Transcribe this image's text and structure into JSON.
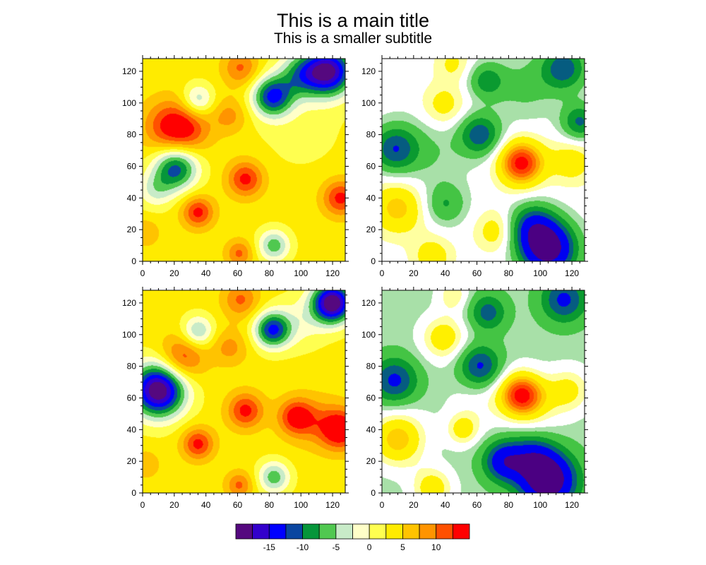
{
  "title": "This is a main title",
  "subtitle": "This is a smaller subtitle",
  "chart_data": {
    "type": "heatmap",
    "subtype": "filled-contour",
    "colorbar": {
      "levels": [
        -17.5,
        -15,
        -12.5,
        -10,
        -7.5,
        -5,
        -2.5,
        0,
        2.5,
        5,
        7.5,
        10,
        12.5
      ],
      "colors": [
        "#55087f",
        "#3300cc",
        "#0000ff",
        "#0a46a0",
        "#06963a",
        "#50c850",
        "#c8ebc8",
        "#ffffc8",
        "#ffff50",
        "#ffeb00",
        "#ffc300",
        "#ff9400",
        "#ff5000",
        "#ff0000"
      ],
      "tick_labels": [
        {
          "value": -15,
          "label": "-15"
        },
        {
          "value": -10,
          "label": "-10"
        },
        {
          "value": -5,
          "label": "-5"
        },
        {
          "value": 0,
          "label": "0"
        },
        {
          "value": 5,
          "label": "5"
        },
        {
          "value": 10,
          "label": "10"
        }
      ]
    },
    "alt_palette": {
      "levels": [
        -15,
        -10,
        -7.5,
        -5,
        -2.5,
        -1,
        1,
        2.5,
        5,
        6.5,
        8,
        9.5,
        11
      ],
      "colors": [
        "#4b0082",
        "#0000f0",
        "#065c80",
        "#0a9a30",
        "#44c444",
        "#a8e0a8",
        "#ffffff",
        "#ffffa0",
        "#fff000",
        "#ffd000",
        "#ffa500",
        "#ff7000",
        "#ff4000",
        "#ff0000"
      ]
    },
    "axis": {
      "xlim": [
        0,
        128
      ],
      "ylim": [
        0,
        128
      ],
      "major_ticks": [
        0,
        20,
        40,
        60,
        80,
        100,
        120
      ],
      "tick_labels": [
        "0",
        "20",
        "40",
        "60",
        "80",
        "100",
        "120"
      ],
      "minor_step": 5
    },
    "panels": [
      {
        "name": "top-left",
        "palette": "colorbar",
        "background": 3.5,
        "components": [
          [
            18,
            85,
            10,
            12
          ],
          [
            30,
            82,
            5,
            10
          ],
          [
            65,
            52,
            10,
            8
          ],
          [
            35,
            31,
            10,
            7
          ],
          [
            125,
            40,
            10,
            8
          ],
          [
            62,
            122,
            7,
            8
          ],
          [
            61,
            5,
            7,
            6
          ],
          [
            2,
            18,
            4,
            6
          ],
          [
            55,
            92,
            5,
            8
          ],
          [
            35,
            102,
            -8,
            7
          ],
          [
            83,
            10,
            -10,
            7
          ],
          [
            21,
            59,
            -15,
            10
          ],
          [
            8,
            45,
            -6,
            8
          ],
          [
            82,
            104,
            -16,
            9
          ],
          [
            118,
            120,
            -21,
            11
          ],
          [
            100,
            118,
            -10,
            10
          ],
          [
            100,
            85,
            -2,
            20
          ]
        ]
      },
      {
        "name": "top-right",
        "palette": "alt",
        "background": 0,
        "components": [
          [
            8,
            71,
            -9,
            10
          ],
          [
            62,
            80,
            -9,
            9
          ],
          [
            66,
            114,
            -6,
            8
          ],
          [
            115,
            122,
            -9,
            10
          ],
          [
            125,
            88,
            -8,
            8
          ],
          [
            40,
            36,
            -5,
            9
          ],
          [
            105,
            8,
            -18,
            12
          ],
          [
            95,
            22,
            -9,
            10
          ],
          [
            88,
            62,
            12,
            10
          ],
          [
            120,
            63,
            4,
            10
          ],
          [
            10,
            34,
            6,
            12
          ],
          [
            39,
            98,
            4,
            10
          ],
          [
            72,
            19,
            4,
            9
          ],
          [
            32,
            3,
            4,
            9
          ],
          [
            45,
            125,
            3,
            8
          ],
          [
            30,
            70,
            -2.5,
            18
          ],
          [
            90,
            110,
            -3,
            15
          ]
        ]
      },
      {
        "name": "bottom-left",
        "palette": "colorbar",
        "background": 3.5,
        "components": [
          [
            25,
            85,
            9,
            10
          ],
          [
            65,
            52,
            10,
            8
          ],
          [
            97,
            48,
            10,
            8
          ],
          [
            125,
            40,
            12,
            9
          ],
          [
            110,
            45,
            4,
            12
          ],
          [
            35,
            31,
            10,
            7
          ],
          [
            62,
            122,
            7,
            8
          ],
          [
            61,
            5,
            7,
            6
          ],
          [
            2,
            18,
            4,
            6
          ],
          [
            55,
            92,
            5,
            8
          ],
          [
            35,
            102,
            -9,
            7
          ],
          [
            83,
            10,
            -10,
            7
          ],
          [
            10,
            65,
            -24,
            12
          ],
          [
            82,
            103,
            -16,
            8
          ],
          [
            120,
            120,
            -24,
            9
          ],
          [
            100,
            108,
            -4,
            12
          ]
        ]
      },
      {
        "name": "bottom-right",
        "palette": "alt",
        "background": -1.8,
        "components": [
          [
            8,
            71,
            -9,
            10
          ],
          [
            62,
            80,
            -9,
            9
          ],
          [
            67,
            114,
            -7,
            8
          ],
          [
            115,
            122,
            -9,
            10
          ],
          [
            105,
            8,
            -18,
            12
          ],
          [
            77,
            20,
            -11,
            9
          ],
          [
            95,
            22,
            -8,
            10
          ],
          [
            88,
            62,
            13,
            10
          ],
          [
            118,
            65,
            5,
            10
          ],
          [
            10,
            34,
            8,
            12
          ],
          [
            39,
            98,
            6,
            10
          ],
          [
            51,
            40,
            5,
            7
          ],
          [
            32,
            3,
            6,
            9
          ],
          [
            45,
            125,
            4,
            7
          ],
          [
            60,
            55,
            2,
            14
          ],
          [
            100,
            52,
            2,
            12
          ]
        ]
      }
    ]
  }
}
